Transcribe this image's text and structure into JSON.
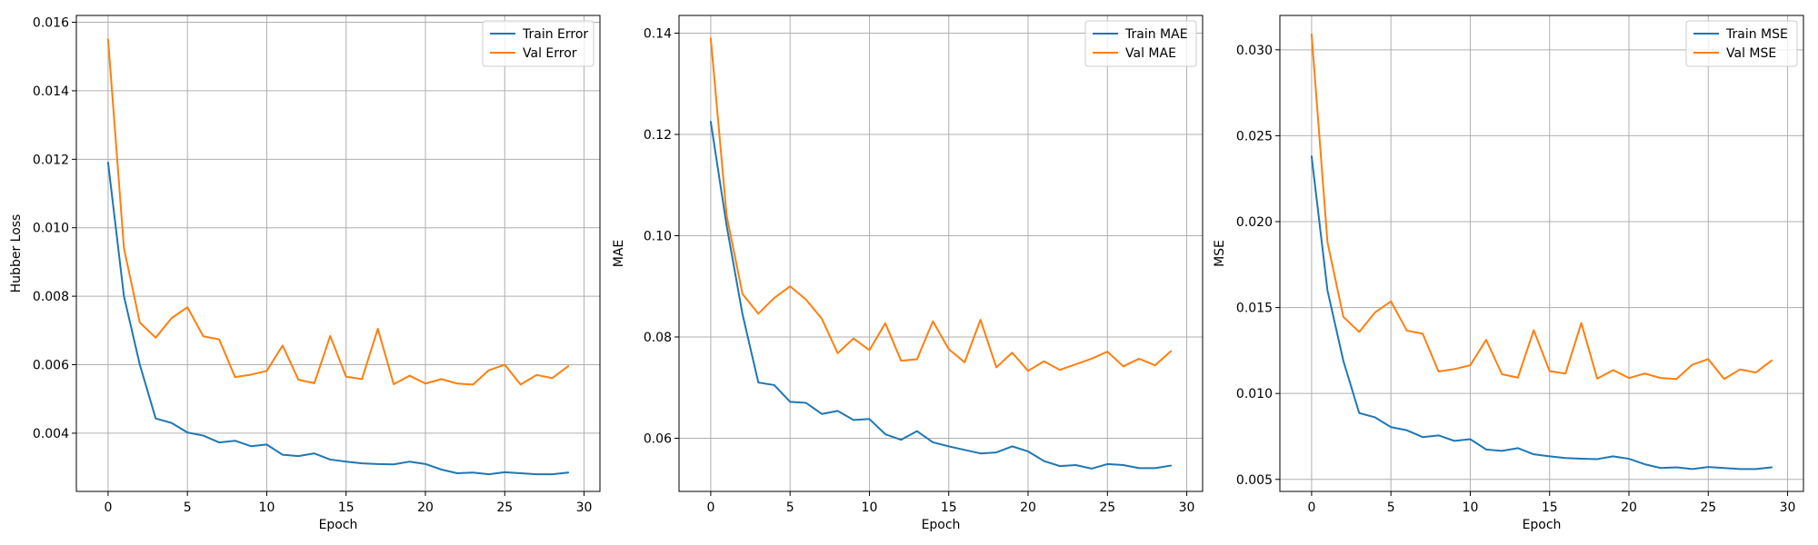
{
  "chart_data": [
    {
      "type": "line",
      "xlabel": "Epoch",
      "ylabel": "Hubber Loss",
      "xlim": [
        -2,
        31
      ],
      "ylim": [
        0.0023,
        0.0162
      ],
      "xticks": [
        0,
        5,
        10,
        15,
        20,
        25,
        30
      ],
      "yticks": [
        0.004,
        0.006,
        0.008,
        0.01,
        0.012,
        0.014,
        0.016
      ],
      "ytick_labels": [
        "0.004",
        "0.006",
        "0.008",
        "0.010",
        "0.012",
        "0.014",
        "0.016"
      ],
      "grid": true,
      "legend_position": "top-right",
      "x": [
        0,
        1,
        2,
        3,
        4,
        5,
        6,
        7,
        8,
        9,
        10,
        11,
        12,
        13,
        14,
        15,
        16,
        17,
        18,
        19,
        20,
        21,
        22,
        23,
        24,
        25,
        26,
        27,
        28,
        29
      ],
      "series": [
        {
          "name": "Train Error",
          "color": "#1f77b4",
          "values": [
            0.0119,
            0.008,
            0.006,
            0.00443,
            0.0043,
            0.00402,
            0.00393,
            0.00373,
            0.00378,
            0.00362,
            0.00367,
            0.00337,
            0.00333,
            0.00341,
            0.00323,
            0.00317,
            0.00312,
            0.0031,
            0.00309,
            0.00317,
            0.0031,
            0.00294,
            0.00283,
            0.00285,
            0.0028,
            0.00286,
            0.00283,
            0.0028,
            0.0028,
            0.00285
          ]
        },
        {
          "name": "Val Error",
          "color": "#ff7f0e",
          "values": [
            0.0155,
            0.0094,
            0.00723,
            0.00679,
            0.00736,
            0.00768,
            0.00683,
            0.00674,
            0.00564,
            0.00571,
            0.00582,
            0.00656,
            0.00556,
            0.00546,
            0.00684,
            0.00565,
            0.00558,
            0.00705,
            0.00543,
            0.00568,
            0.00545,
            0.00558,
            0.00545,
            0.00542,
            0.00584,
            0.006,
            0.00542,
            0.0057,
            0.00561,
            0.00596
          ]
        }
      ]
    },
    {
      "type": "line",
      "xlabel": "Epoch",
      "ylabel": "MAE",
      "xlim": [
        -2,
        31
      ],
      "ylim": [
        0.0495,
        0.1435
      ],
      "xticks": [
        0,
        5,
        10,
        15,
        20,
        25,
        30
      ],
      "yticks": [
        0.06,
        0.08,
        0.1,
        0.12,
        0.14
      ],
      "ytick_labels": [
        "0.06",
        "0.08",
        "0.10",
        "0.12",
        "0.14"
      ],
      "grid": true,
      "legend_position": "top-right",
      "x": [
        0,
        1,
        2,
        3,
        4,
        5,
        6,
        7,
        8,
        9,
        10,
        11,
        12,
        13,
        14,
        15,
        16,
        17,
        18,
        19,
        20,
        21,
        22,
        23,
        24,
        25,
        26,
        27,
        28,
        29
      ],
      "series": [
        {
          "name": "Train MAE",
          "color": "#1f77b4",
          "values": [
            0.1225,
            0.102,
            0.0845,
            0.071,
            0.0705,
            0.0672,
            0.067,
            0.0648,
            0.0654,
            0.0636,
            0.0638,
            0.0608,
            0.0597,
            0.0614,
            0.0592,
            0.0584,
            0.0577,
            0.057,
            0.0572,
            0.0584,
            0.0574,
            0.0555,
            0.0545,
            0.0547,
            0.054,
            0.0549,
            0.0547,
            0.0541,
            0.0541,
            0.0546
          ]
        },
        {
          "name": "Val MAE",
          "color": "#ff7f0e",
          "values": [
            0.139,
            0.104,
            0.0885,
            0.0846,
            0.0877,
            0.09,
            0.0874,
            0.0836,
            0.0768,
            0.0797,
            0.0774,
            0.0827,
            0.0753,
            0.0756,
            0.0831,
            0.0776,
            0.075,
            0.0834,
            0.074,
            0.0769,
            0.0733,
            0.0752,
            0.0735,
            0.0746,
            0.0757,
            0.0771,
            0.0742,
            0.0757,
            0.0744,
            0.0772
          ]
        }
      ]
    },
    {
      "type": "line",
      "xlabel": "Epoch",
      "ylabel": "MSE",
      "xlim": [
        -2,
        31
      ],
      "ylim": [
        0.0043,
        0.032
      ],
      "xticks": [
        0,
        5,
        10,
        15,
        20,
        25,
        30
      ],
      "yticks": [
        0.005,
        0.01,
        0.015,
        0.02,
        0.025,
        0.03
      ],
      "ytick_labels": [
        "0.005",
        "0.010",
        "0.015",
        "0.020",
        "0.025",
        "0.030"
      ],
      "grid": true,
      "legend_position": "top-right",
      "x": [
        0,
        1,
        2,
        3,
        4,
        5,
        6,
        7,
        8,
        9,
        10,
        11,
        12,
        13,
        14,
        15,
        16,
        17,
        18,
        19,
        20,
        21,
        22,
        23,
        24,
        25,
        26,
        27,
        28,
        29
      ],
      "series": [
        {
          "name": "Train MSE",
          "color": "#1f77b4",
          "values": [
            0.0238,
            0.016,
            0.0119,
            0.00886,
            0.00861,
            0.00804,
            0.00786,
            0.00746,
            0.00756,
            0.00724,
            0.00734,
            0.00674,
            0.00666,
            0.00682,
            0.00646,
            0.00634,
            0.00624,
            0.0062,
            0.00618,
            0.00634,
            0.0062,
            0.00588,
            0.00566,
            0.0057,
            0.0056,
            0.00572,
            0.00566,
            0.0056,
            0.0056,
            0.0057
          ]
        },
        {
          "name": "Val MSE",
          "color": "#ff7f0e",
          "values": [
            0.0309,
            0.0188,
            0.01446,
            0.01358,
            0.01472,
            0.01536,
            0.01366,
            0.01348,
            0.01128,
            0.01142,
            0.01164,
            0.01312,
            0.01112,
            0.01092,
            0.01368,
            0.0113,
            0.01116,
            0.0141,
            0.01086,
            0.01136,
            0.0109,
            0.01116,
            0.0109,
            0.01084,
            0.01168,
            0.012,
            0.01084,
            0.0114,
            0.01122,
            0.01192
          ]
        }
      ]
    }
  ]
}
